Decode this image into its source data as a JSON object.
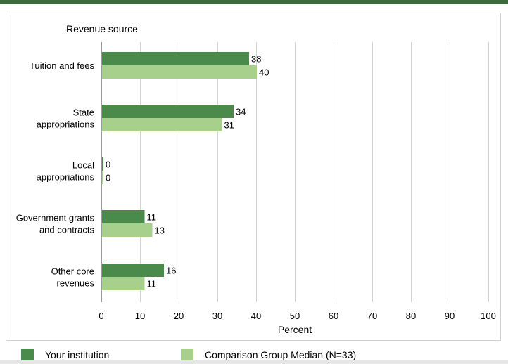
{
  "chart_data": {
    "type": "bar",
    "orientation": "horizontal",
    "title": "Revenue source",
    "xlabel": "Percent",
    "ylabel": "",
    "xlim": [
      0,
      100
    ],
    "x_ticks": [
      0,
      10,
      20,
      30,
      40,
      50,
      60,
      70,
      80,
      90,
      100
    ],
    "grid": "vertical",
    "legend_position": "bottom",
    "categories": [
      [
        "Tuition and fees"
      ],
      [
        "State",
        "appropriations"
      ],
      [
        "Local",
        "appropriations"
      ],
      [
        "Government grants",
        "and contracts"
      ],
      [
        "Other core",
        "revenues"
      ]
    ],
    "series": [
      {
        "name": "Your institution",
        "color": "#4a8a4a",
        "values": [
          38,
          34,
          0,
          11,
          16
        ]
      },
      {
        "name": "Comparison Group Median (N=33)",
        "color": "#a8d08d",
        "values": [
          40,
          31,
          0,
          13,
          11
        ]
      }
    ]
  },
  "legend": {
    "your_institution": "Your institution",
    "comparison": "Comparison Group Median (N=33)"
  }
}
